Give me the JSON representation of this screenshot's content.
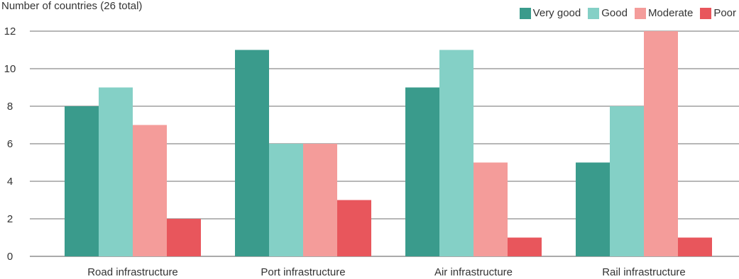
{
  "chart_data": {
    "type": "bar",
    "ylabel": "Number of countries (26 total)",
    "categories": [
      "Road infrastructure",
      "Port infrastructure",
      "Air infrastructure",
      "Rail infrastructure"
    ],
    "series": [
      {
        "name": "Very good",
        "color": "#3a9b8c",
        "values": [
          8,
          11,
          9,
          5
        ]
      },
      {
        "name": "Good",
        "color": "#84d0c6",
        "values": [
          9,
          6,
          11,
          8
        ]
      },
      {
        "name": "Moderate",
        "color": "#f49c9a",
        "values": [
          7,
          6,
          5,
          12
        ]
      },
      {
        "name": "Poor",
        "color": "#e8565c",
        "values": [
          2,
          3,
          1,
          1
        ]
      }
    ],
    "ylim": [
      0,
      12
    ],
    "yticks": [
      0,
      2,
      4,
      6,
      8,
      10,
      12
    ],
    "grid": true,
    "legend": "top-right"
  }
}
